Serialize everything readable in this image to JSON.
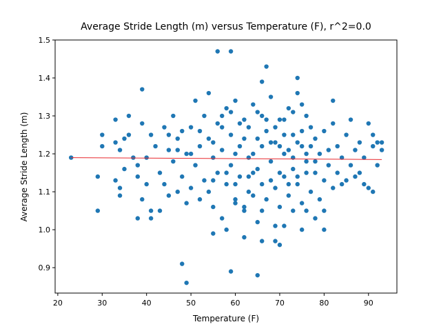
{
  "chart_data": {
    "type": "scatter",
    "title": "Average Stride Length (m) versus Temperature (F), r^2=0.0",
    "x_label": "Temperature (F)",
    "y_label": "Average Stride Length (m)",
    "color": "#1f77b4",
    "x": [
      23,
      29,
      29,
      30,
      30,
      39,
      48,
      49,
      56,
      59,
      67,
      66,
      74,
      59,
      65,
      70,
      69,
      66,
      62,
      55,
      58,
      75,
      80,
      93,
      92,
      91,
      38,
      41,
      54,
      82,
      33,
      33,
      34,
      34,
      35,
      35,
      36,
      36,
      33,
      34,
      37,
      38,
      38,
      39,
      39,
      40,
      40,
      41,
      41,
      42,
      43,
      43,
      44,
      44,
      45,
      45,
      46,
      46,
      47,
      47,
      48,
      48,
      49,
      49,
      50,
      50,
      51,
      51,
      52,
      52,
      53,
      53,
      54,
      54,
      55,
      55,
      56,
      56,
      57,
      57,
      58,
      58,
      59,
      59,
      60,
      60,
      61,
      61,
      62,
      62,
      63,
      63,
      64,
      64,
      65,
      65,
      66,
      66,
      67,
      67,
      68,
      68,
      69,
      69,
      70,
      70,
      71,
      71,
      72,
      72,
      73,
      73,
      74,
      74,
      75,
      75,
      76,
      76,
      77,
      77,
      78,
      78,
      79,
      79,
      80,
      80,
      81,
      81,
      82,
      82,
      83,
      83,
      84,
      84,
      85,
      85,
      86,
      86,
      87,
      87,
      88,
      88,
      89,
      89,
      90,
      90,
      91,
      91,
      92,
      93,
      45,
      47,
      50,
      52,
      55,
      57,
      60,
      62,
      64,
      66,
      68,
      70,
      71,
      72,
      73,
      74,
      75,
      76,
      77,
      78,
      55,
      58,
      60,
      63,
      65,
      68,
      70,
      72,
      74,
      76,
      66,
      69,
      71,
      73,
      76,
      78,
      80,
      60,
      62,
      64,
      57,
      59,
      61,
      63,
      65,
      67,
      69,
      71,
      73,
      75
    ],
    "y": [
      1.19,
      1.14,
      1.05,
      1.25,
      1.22,
      1.37,
      0.91,
      0.86,
      1.47,
      1.47,
      1.43,
      1.39,
      1.4,
      0.89,
      0.88,
      0.96,
      0.97,
      0.97,
      0.98,
      0.99,
      1.0,
      1.0,
      1.0,
      1.21,
      1.17,
      1.1,
      1.03,
      1.03,
      1.36,
      1.34,
      1.29,
      1.13,
      1.21,
      1.11,
      1.24,
      1.16,
      1.3,
      1.25,
      1.23,
      1.09,
      1.19,
      1.17,
      1.14,
      1.28,
      1.08,
      1.19,
      1.12,
      1.25,
      1.05,
      1.22,
      1.15,
      1.05,
      1.27,
      1.12,
      1.21,
      1.09,
      1.3,
      1.18,
      1.24,
      1.1,
      1.26,
      1.14,
      1.2,
      1.07,
      1.27,
      1.11,
      1.34,
      1.17,
      1.22,
      1.08,
      1.3,
      1.13,
      1.24,
      1.1,
      1.19,
      1.06,
      1.28,
      1.15,
      1.21,
      1.03,
      1.32,
      1.12,
      1.25,
      1.17,
      1.34,
      1.08,
      1.22,
      1.14,
      1.29,
      1.05,
      1.19,
      1.1,
      1.33,
      1.15,
      1.24,
      1.02,
      1.3,
      1.12,
      1.26,
      1.08,
      1.35,
      1.18,
      1.23,
      1.11,
      1.29,
      1.06,
      1.2,
      1.14,
      1.32,
      1.09,
      1.25,
      1.16,
      1.36,
      1.12,
      1.22,
      1.07,
      1.3,
      1.18,
      1.27,
      1.1,
      1.24,
      1.15,
      1.2,
      1.08,
      1.26,
      1.13,
      1.21,
      1.17,
      1.28,
      1.11,
      1.22,
      1.15,
      1.19,
      1.12,
      1.25,
      1.13,
      1.29,
      1.17,
      1.21,
      1.14,
      1.23,
      1.15,
      1.19,
      1.12,
      1.11,
      1.28,
      1.25,
      1.22,
      1.23,
      1.23,
      1.25,
      1.21,
      1.2,
      1.26,
      1.23,
      1.27,
      1.2,
      1.24,
      1.2,
      1.22,
      1.23,
      1.22,
      1.25,
      1.21,
      1.19,
      1.23,
      1.26,
      1.2,
      1.22,
      1.18,
      1.13,
      1.15,
      1.12,
      1.14,
      1.16,
      1.13,
      1.15,
      1.12,
      1.14,
      1.15,
      1.05,
      1.01,
      1.01,
      1.05,
      1.05,
      1.03,
      1.05,
      1.07,
      1.06,
      1.09,
      1.3,
      1.31,
      1.28,
      1.27,
      1.31,
      1.29,
      1.27,
      1.29,
      1.31,
      1.33
    ],
    "fit": {
      "x": [
        23,
        93
      ],
      "y": [
        1.19,
        1.185
      ],
      "color": "#e8282d"
    },
    "xlim": [
      19.4,
      96.4
    ],
    "xticks": [
      20,
      30,
      40,
      50,
      60,
      70,
      80,
      90
    ],
    "ylim": [
      0.833,
      1.5
    ],
    "yticks": [
      0.9,
      {
        "value": 1,
        "label": "1.0"
      },
      1.1,
      1.2,
      1.3,
      1.4,
      1.5
    ]
  }
}
